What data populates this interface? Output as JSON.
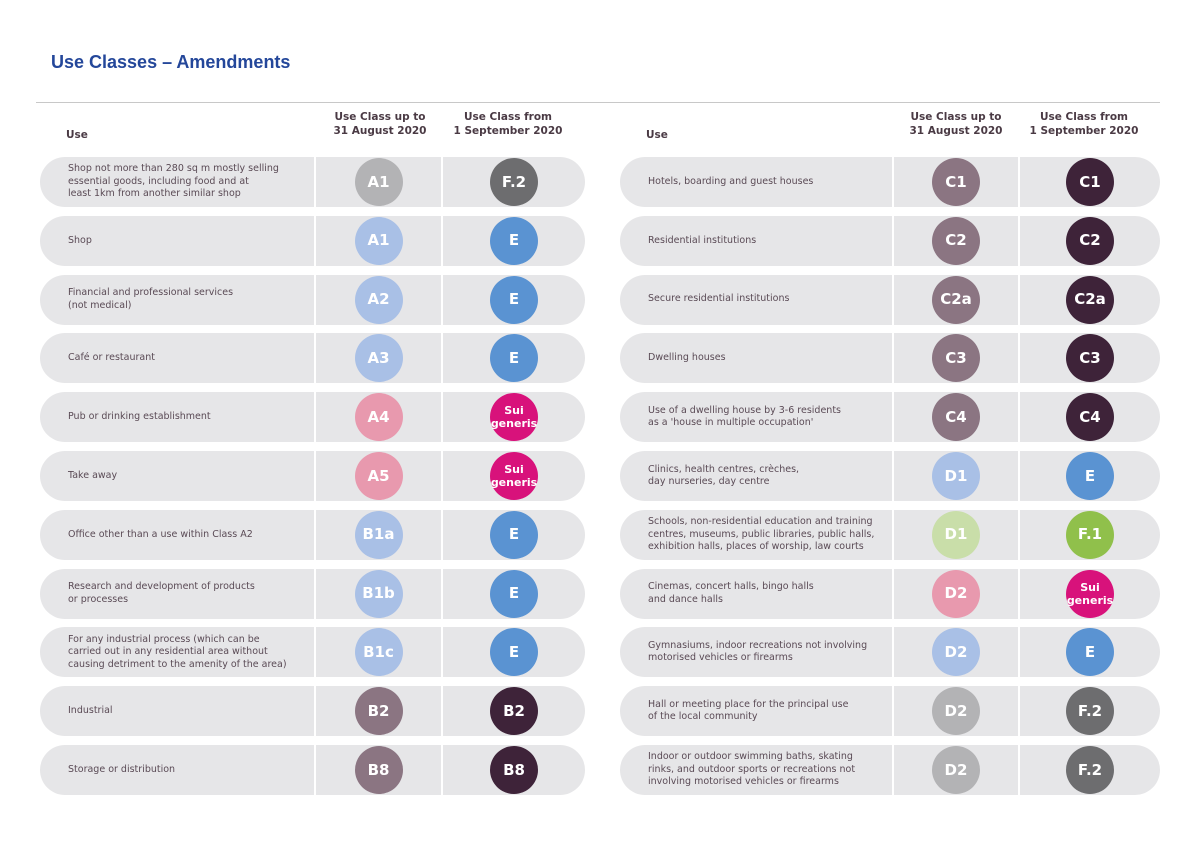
{
  "title": "Use Classes – Amendments",
  "headers": {
    "use": "Use",
    "up_to": "Use Class up to\n31 August 2020",
    "from": "Use Class from\n1 September 2020"
  },
  "colors": {
    "gray": "#b3b3b5",
    "darkgray": "#6d6d6f",
    "lightblue": "#a9c0e6",
    "blue": "#5a93d2",
    "pink": "#e899ae",
    "magenta": "#d8127b",
    "mauve": "#8b7582",
    "plum": "#3e2339",
    "lightgreen": "#c9dea9",
    "green": "#90c04b"
  },
  "left": [
    {
      "use": "Shop not more than 280 sq m mostly selling\nessential goods, including food and at\nleast 1km from another similar shop",
      "old": "A1",
      "old_color": "gray",
      "new": "F.2",
      "new_color": "darkgray"
    },
    {
      "use": "Shop",
      "old": "A1",
      "old_color": "lightblue",
      "new": "E",
      "new_color": "blue"
    },
    {
      "use": "Financial and professional services\n(not medical)",
      "old": "A2",
      "old_color": "lightblue",
      "new": "E",
      "new_color": "blue"
    },
    {
      "use": "Café or restaurant",
      "old": "A3",
      "old_color": "lightblue",
      "new": "E",
      "new_color": "blue"
    },
    {
      "use": "Pub or drinking establishment",
      "old": "A4",
      "old_color": "pink",
      "new": "Sui generis",
      "new_color": "magenta"
    },
    {
      "use": "Take away",
      "old": "A5",
      "old_color": "pink",
      "new": "Sui generis",
      "new_color": "magenta"
    },
    {
      "use": "Office other than a use within Class A2",
      "old": "B1a",
      "old_color": "lightblue",
      "new": "E",
      "new_color": "blue"
    },
    {
      "use": "Research and development of products\nor processes",
      "old": "B1b",
      "old_color": "lightblue",
      "new": "E",
      "new_color": "blue"
    },
    {
      "use": "For any industrial process (which can be\ncarried out in any residential area without\ncausing detriment to the amenity of the area)",
      "old": "B1c",
      "old_color": "lightblue",
      "new": "E",
      "new_color": "blue"
    },
    {
      "use": "Industrial",
      "old": "B2",
      "old_color": "mauve",
      "new": "B2",
      "new_color": "plum"
    },
    {
      "use": "Storage or distribution",
      "old": "B8",
      "old_color": "mauve",
      "new": "B8",
      "new_color": "plum"
    }
  ],
  "right": [
    {
      "use": "Hotels, boarding and guest houses",
      "old": "C1",
      "old_color": "mauve",
      "new": "C1",
      "new_color": "plum"
    },
    {
      "use": "Residential institutions",
      "old": "C2",
      "old_color": "mauve",
      "new": "C2",
      "new_color": "plum"
    },
    {
      "use": "Secure residential institutions",
      "old": "C2a",
      "old_color": "mauve",
      "new": "C2a",
      "new_color": "plum"
    },
    {
      "use": "Dwelling houses",
      "old": "C3",
      "old_color": "mauve",
      "new": "C3",
      "new_color": "plum"
    },
    {
      "use": "Use of a dwelling house by 3-6 residents\nas a 'house in multiple occupation'",
      "old": "C4",
      "old_color": "mauve",
      "new": "C4",
      "new_color": "plum"
    },
    {
      "use": "Clinics, health centres, crèches,\nday nurseries, day centre",
      "old": "D1",
      "old_color": "lightblue",
      "new": "E",
      "new_color": "blue"
    },
    {
      "use": "Schools, non-residential education and training\ncentres, museums, public libraries, public halls,\nexhibition halls, places of worship, law courts",
      "old": "D1",
      "old_color": "lightgreen",
      "new": "F.1",
      "new_color": "green"
    },
    {
      "use": "Cinemas, concert halls, bingo halls\nand dance halls",
      "old": "D2",
      "old_color": "pink",
      "new": "Sui generis",
      "new_color": "magenta"
    },
    {
      "use": "Gymnasiums, indoor recreations not involving\nmotorised vehicles or firearms",
      "old": "D2",
      "old_color": "lightblue",
      "new": "E",
      "new_color": "blue"
    },
    {
      "use": "Hall or meeting place for the principal use\nof the local community",
      "old": "D2",
      "old_color": "gray",
      "new": "F.2",
      "new_color": "darkgray"
    },
    {
      "use": "Indoor or outdoor swimming baths, skating\nrinks, and outdoor sports or recreations not\ninvolving motorised vehicles or firearms",
      "old": "D2",
      "old_color": "gray",
      "new": "F.2",
      "new_color": "darkgray"
    }
  ]
}
